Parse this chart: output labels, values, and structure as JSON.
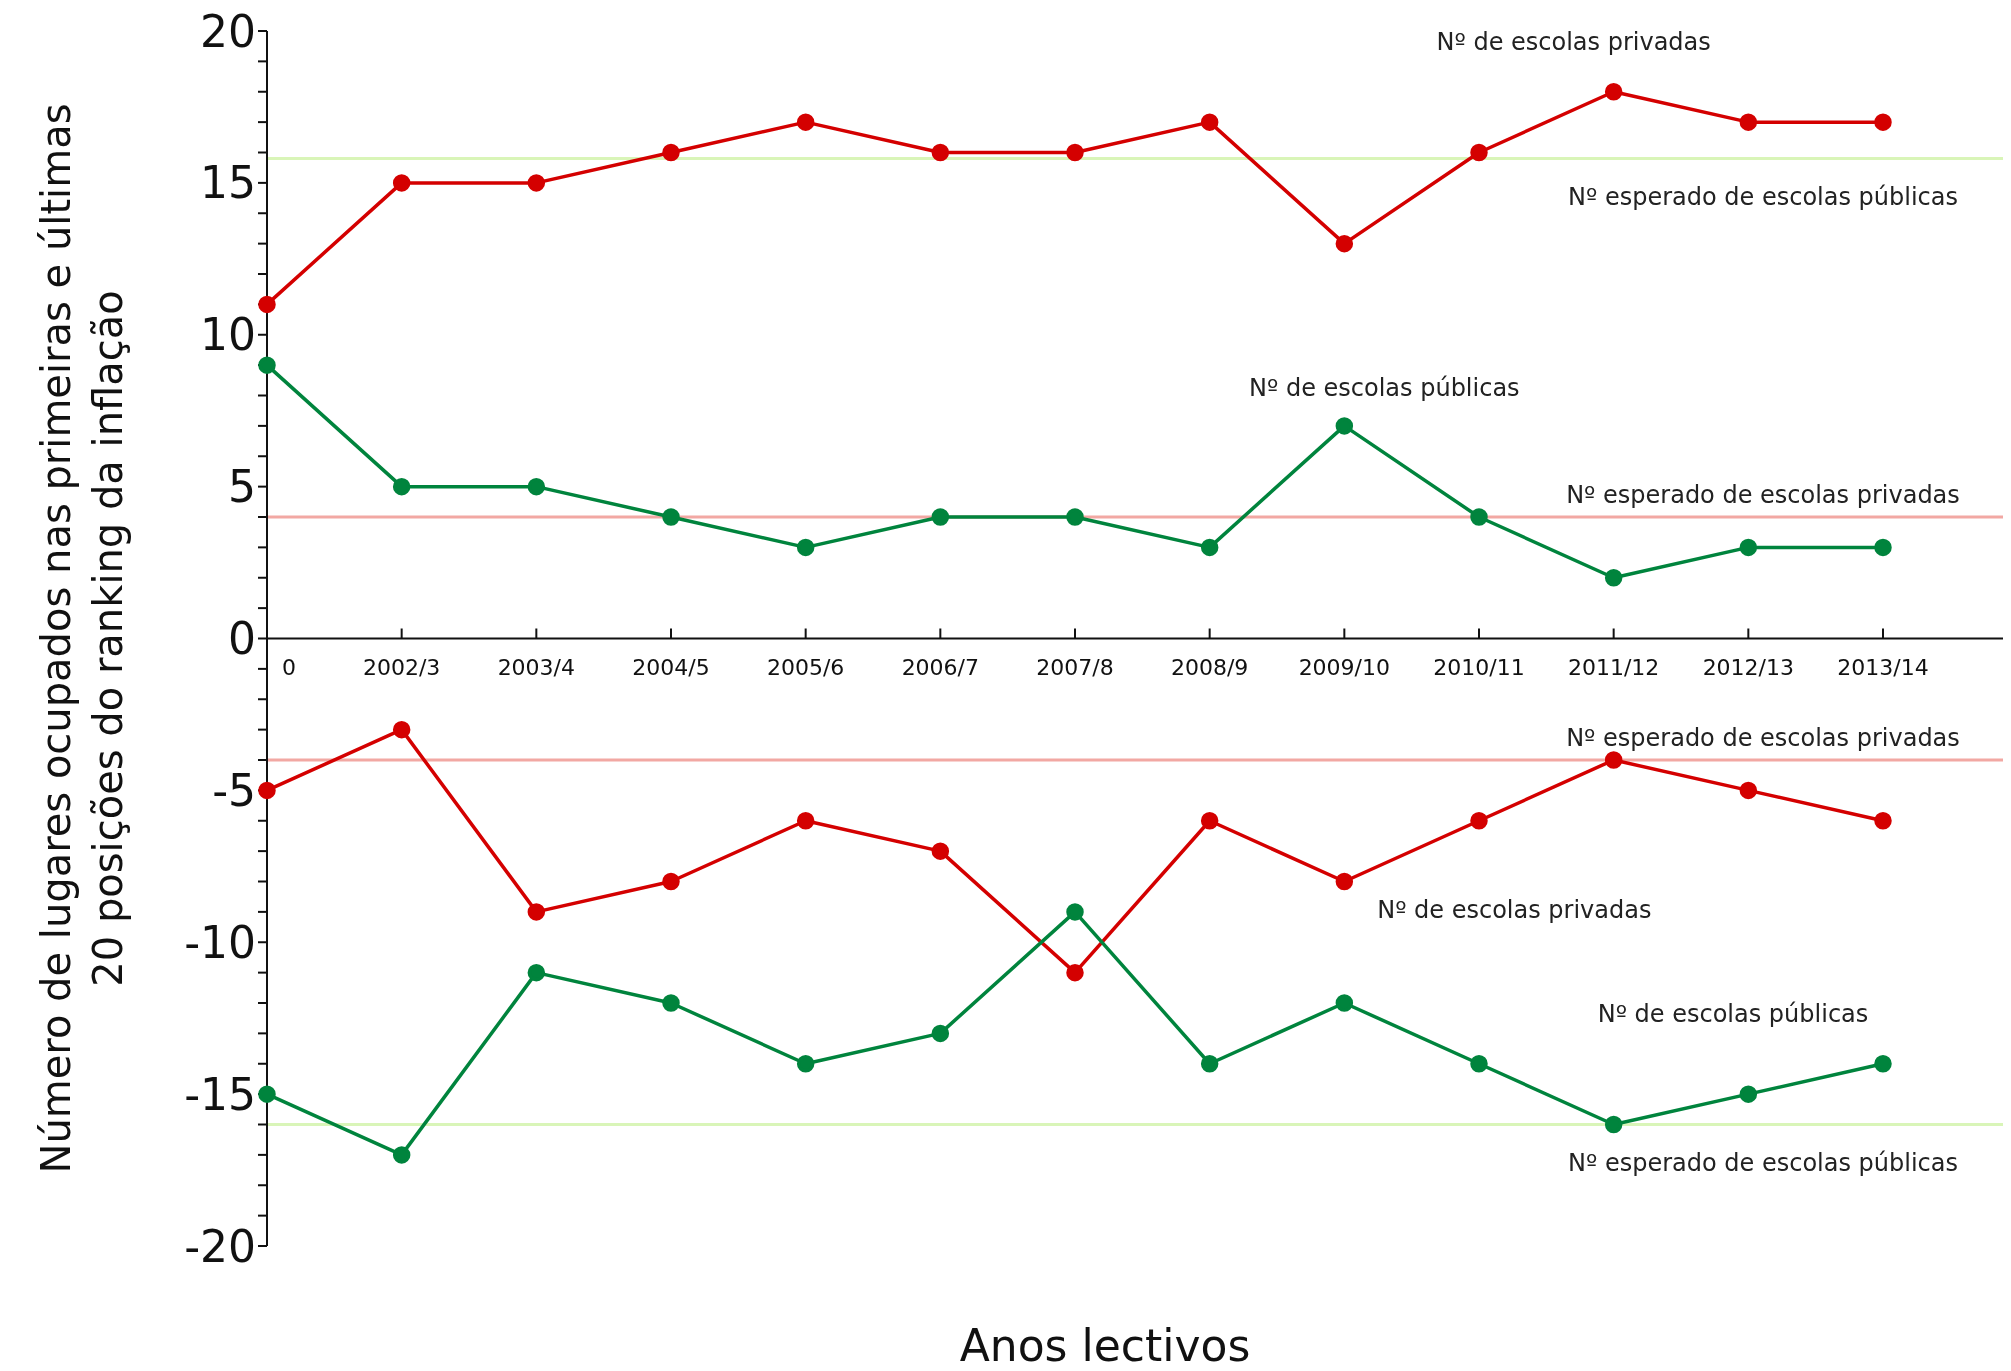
{
  "chart_data": {
    "type": "line",
    "xlabel": "Anos lectivos",
    "ylabel": "Número de lugares ocupados nas primeiras e últimas\n20 posições do ranking da inflação",
    "categories": [
      "0",
      "2002/3",
      "2003/4",
      "2004/5",
      "2005/6",
      "2006/7",
      "2007/8",
      "2008/9",
      "2009/10",
      "2010/11",
      "2011/12",
      "2012/13",
      "2013/14"
    ],
    "series": [
      {
        "name": "Nº de escolas privadas",
        "color": "#d40000",
        "values": [
          11,
          15,
          15,
          16,
          17,
          16,
          16,
          17,
          13,
          16,
          18,
          17,
          17
        ]
      },
      {
        "name": "Nº de escolas públicas",
        "color": "#00843d",
        "values": [
          9,
          5,
          5,
          4,
          3,
          4,
          4,
          3,
          7,
          4,
          2,
          3,
          3
        ]
      },
      {
        "name": "Nº de escolas privadas",
        "color": "#d40000",
        "values": [
          -5,
          -3,
          -9,
          -8,
          -6,
          -7,
          -11,
          -6,
          -8,
          -6,
          -4,
          -5,
          -6
        ]
      },
      {
        "name": "Nº de escolas públicas",
        "color": "#00843d",
        "values": [
          -15,
          -17,
          -11,
          -12,
          -14,
          -13,
          -9,
          -14,
          -12,
          -14,
          -16,
          -15,
          -14
        ]
      }
    ],
    "ref_lines": [
      {
        "axis": "y",
        "value": 15.8,
        "label": "Nº esperado de escolas públicas",
        "color": "#d9f5b8"
      },
      {
        "axis": "y",
        "value": 4,
        "label": "Nº esperado de escolas privadas",
        "color": "#f2a8a3"
      },
      {
        "axis": "y",
        "value": -4,
        "label": "Nº esperado de escolas privadas",
        "color": "#f2a8a3"
      },
      {
        "axis": "y",
        "value": -16,
        "label": "Nº esperado de escolas públicas",
        "color": "#d9f5b8"
      }
    ],
    "ylim": [
      -20,
      20
    ],
    "yticks": [
      -20,
      {
        "value": -19,
        "label": null
      },
      {
        "value": -18,
        "label": null
      },
      {
        "value": -17,
        "label": null
      },
      {
        "value": -16,
        "label": null
      },
      -15,
      {
        "value": -14,
        "label": null
      },
      {
        "value": -13,
        "label": null
      },
      {
        "value": -12,
        "label": null
      },
      {
        "value": -11,
        "label": null
      },
      -10,
      {
        "value": -9,
        "label": null
      },
      {
        "value": -8,
        "label": null
      },
      {
        "value": -7,
        "label": null
      },
      {
        "value": -6,
        "label": null
      },
      -5,
      {
        "value": -4,
        "label": null
      },
      {
        "value": -3,
        "label": null
      },
      {
        "value": -2,
        "label": null
      },
      {
        "value": -1,
        "label": null
      },
      0,
      {
        "value": 1,
        "label": null
      },
      {
        "value": 2,
        "label": null
      },
      {
        "value": 3,
        "label": null
      },
      {
        "value": 4,
        "label": null
      },
      5,
      {
        "value": 6,
        "label": null
      },
      {
        "value": 7,
        "label": null
      },
      {
        "value": 8,
        "label": null
      },
      {
        "value": 9,
        "label": null
      },
      10,
      {
        "value": 11,
        "label": null
      },
      {
        "value": 12,
        "label": null
      },
      {
        "value": 13,
        "label": null
      },
      {
        "value": 14,
        "label": null
      },
      15,
      {
        "value": 16,
        "label": null
      },
      {
        "value": 17,
        "label": null
      },
      {
        "value": 18,
        "label": null
      },
      {
        "value": 19,
        "label": null
      },
      20
    ],
    "grid": false,
    "legend": false,
    "marker": "circle",
    "line_style": "solid"
  }
}
